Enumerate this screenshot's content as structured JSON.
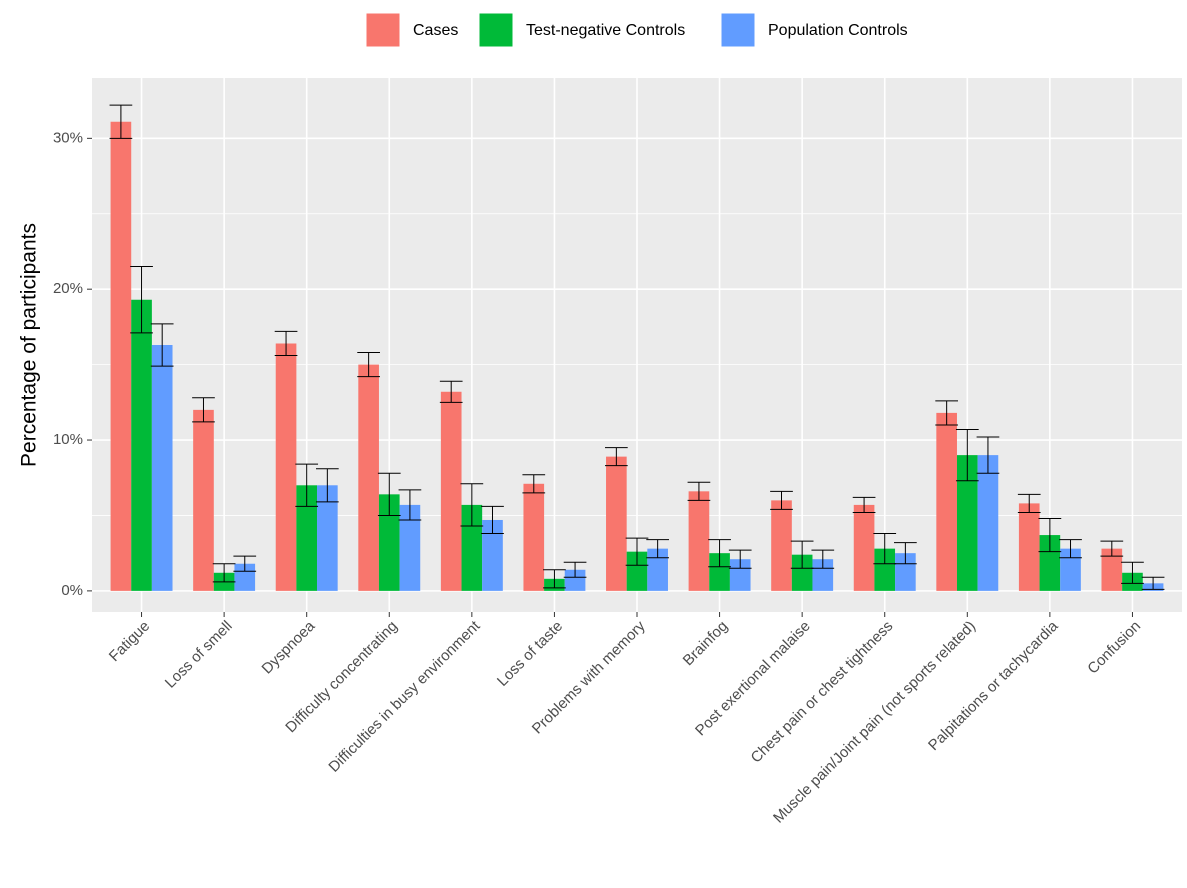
{
  "chart_data": {
    "type": "bar",
    "y_label": "Percentage of participants",
    "categories": [
      "Fatigue",
      "Loss of smell",
      "Dyspnoea",
      "Difficulty concentrating",
      "Difficulties in busy environment",
      "Loss of taste",
      "Problems with memory",
      "Brainfog",
      "Post exertional malaise",
      "Chest pain or chest tightness",
      "Muscle pain/Joint pain (not sports related)",
      "Palpitations or tachycardia",
      "Confusion"
    ],
    "series": [
      {
        "name": "Cases",
        "color": "#F8766D",
        "values": [
          31.1,
          12.0,
          16.4,
          15.0,
          13.2,
          7.1,
          8.9,
          6.6,
          6.0,
          5.7,
          11.8,
          5.8,
          2.8
        ],
        "errors": [
          1.1,
          0.8,
          0.8,
          0.8,
          0.7,
          0.6,
          0.6,
          0.6,
          0.6,
          0.5,
          0.8,
          0.6,
          0.5
        ]
      },
      {
        "name": "Test-negative Controls",
        "color": "#00BA38",
        "values": [
          19.3,
          1.2,
          7.0,
          6.4,
          5.7,
          0.8,
          2.6,
          2.5,
          2.4,
          2.8,
          9.0,
          3.7,
          1.2
        ],
        "errors": [
          2.2,
          0.6,
          1.4,
          1.4,
          1.4,
          0.6,
          0.9,
          0.9,
          0.9,
          1.0,
          1.7,
          1.1,
          0.7
        ]
      },
      {
        "name": "Population Controls",
        "color": "#619CFF",
        "values": [
          16.3,
          1.8,
          7.0,
          5.7,
          4.7,
          1.4,
          2.8,
          2.1,
          2.1,
          2.5,
          9.0,
          2.8,
          0.5
        ],
        "errors": [
          1.4,
          0.5,
          1.1,
          1.0,
          0.9,
          0.5,
          0.6,
          0.6,
          0.6,
          0.7,
          1.2,
          0.6,
          0.4
        ]
      }
    ],
    "ylim": [
      -1.4,
      34
    ],
    "yticks": [
      {
        "value": 0,
        "label": "0%"
      },
      {
        "value": 10,
        "label": "10%"
      },
      {
        "value": 20,
        "label": "20%"
      },
      {
        "value": 30,
        "label": "30%"
      }
    ],
    "y_minor_grid": [
      5,
      15,
      25
    ],
    "grid": true,
    "legend_position": "top"
  }
}
